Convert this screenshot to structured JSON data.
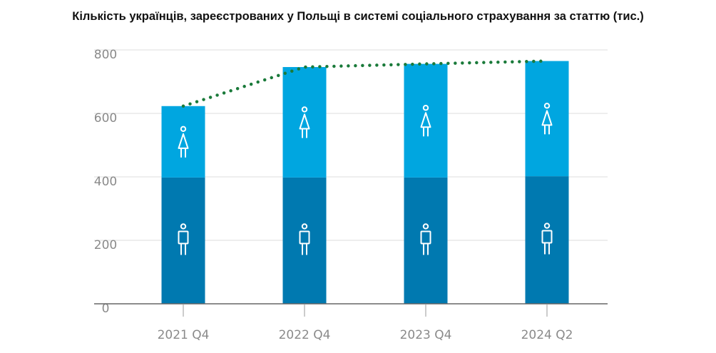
{
  "chart_data": {
    "type": "bar",
    "stacked": true,
    "title": "Кількість українців, зареєстрованих у Польщі в системі соціального страхування за статтю (тис.)",
    "categories": [
      "2021 Q4",
      "2022 Q4",
      "2023 Q4",
      "2024 Q2"
    ],
    "series": [
      {
        "icon": "male-icon",
        "values": [
          398,
          398,
          398,
          402
        ]
      },
      {
        "icon": "female-icon",
        "values": [
          225,
          348,
          358,
          363
        ]
      }
    ],
    "totals_line": {
      "style": "dotted",
      "values": [
        623,
        746,
        756,
        765
      ]
    },
    "yticks": [
      0,
      200,
      400,
      600,
      800
    ],
    "ylim": [
      0,
      800
    ],
    "grid": true,
    "colors": {
      "male": "#0079b0",
      "female": "#00a6e0",
      "line": "#1a7a3a",
      "grid": "#dddddd",
      "axis": "#666666"
    }
  }
}
